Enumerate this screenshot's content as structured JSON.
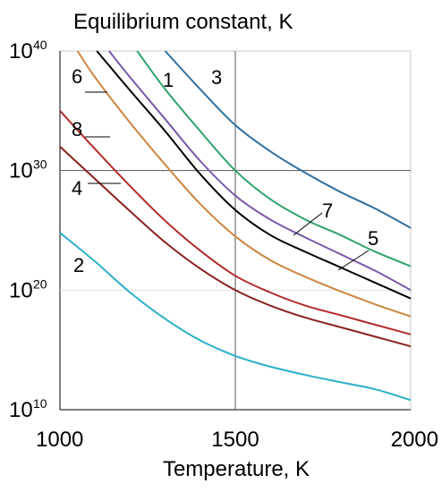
{
  "chart_data": {
    "type": "line",
    "title": "Equilibrium constant, K",
    "xlabel": "Temperature, K",
    "ylabel": "",
    "xlim": [
      1000,
      2000
    ],
    "ylim_log10": [
      10,
      40
    ],
    "y_scale": "log",
    "x_ticks": [
      "1000",
      "1500",
      "2000"
    ],
    "y_ticks": [
      {
        "base": "10",
        "exp": "10"
      },
      {
        "base": "10",
        "exp": "20"
      },
      {
        "base": "10",
        "exp": "30"
      },
      {
        "base": "10",
        "exp": "40"
      }
    ],
    "grid": "major",
    "series": [
      {
        "name": "3",
        "color": "#2f6f9f",
        "x": [
          1300,
          1400,
          1500,
          1600,
          1700,
          1800,
          1900,
          2000
        ],
        "log10_y": [
          40,
          36.8,
          33.8,
          31.6,
          29.8,
          28.2,
          26.8,
          25.2
        ]
      },
      {
        "name": "1",
        "color": "#2ea36a",
        "x": [
          1220,
          1300,
          1400,
          1500,
          1600,
          1700,
          1800,
          1900,
          2000
        ],
        "log10_y": [
          40,
          36.8,
          33.3,
          30.0,
          27.6,
          25.9,
          24.6,
          23.2,
          22.0
        ]
      },
      {
        "name": "7",
        "color": "#7a5aa8",
        "x": [
          1140,
          1200,
          1300,
          1400,
          1500,
          1600,
          1700,
          1800,
          1900,
          2000
        ],
        "log10_y": [
          40,
          37.8,
          34.3,
          30.8,
          27.9,
          25.9,
          24.4,
          23.0,
          21.6,
          20.0
        ]
      },
      {
        "name": "5",
        "color": "#000000",
        "x": [
          1105,
          1200,
          1300,
          1400,
          1500,
          1600,
          1700,
          1800,
          1900,
          2000
        ],
        "log10_y": [
          40,
          36.7,
          33.3,
          29.7,
          26.7,
          24.6,
          23.2,
          21.9,
          20.6,
          19.3
        ]
      },
      {
        "name": "6",
        "color": "#cd853f",
        "x": [
          1050,
          1100,
          1200,
          1300,
          1400,
          1500,
          1600,
          1700,
          1800,
          1900,
          2000
        ],
        "log10_y": [
          40,
          37.8,
          34.0,
          30.5,
          27.2,
          24.5,
          22.5,
          21.1,
          19.9,
          18.8,
          17.8
        ]
      },
      {
        "name": "8",
        "color": "#b22a2a",
        "x": [
          1000,
          1100,
          1200,
          1300,
          1400,
          1500,
          1600,
          1700,
          1800,
          1900,
          2000
        ],
        "log10_y": [
          35.0,
          31.8,
          28.7,
          25.8,
          23.3,
          21.2,
          19.8,
          18.7,
          17.9,
          17.1,
          16.3
        ]
      },
      {
        "name": "4",
        "color": "#8b2020",
        "x": [
          1000,
          1100,
          1200,
          1300,
          1400,
          1500,
          1600,
          1700,
          1800,
          1900,
          2000
        ],
        "log10_y": [
          32.0,
          29.3,
          26.6,
          24.0,
          21.8,
          20.0,
          18.7,
          17.7,
          16.9,
          16.1,
          15.3
        ]
      },
      {
        "name": "2",
        "color": "#2ab0c8",
        "x": [
          1000,
          1100,
          1200,
          1300,
          1400,
          1500,
          1600,
          1700,
          1800,
          1900,
          2000
        ],
        "log10_y": [
          24.8,
          22.4,
          19.8,
          17.6,
          15.8,
          14.5,
          13.6,
          12.9,
          12.3,
          11.7,
          10.8
        ]
      }
    ]
  }
}
